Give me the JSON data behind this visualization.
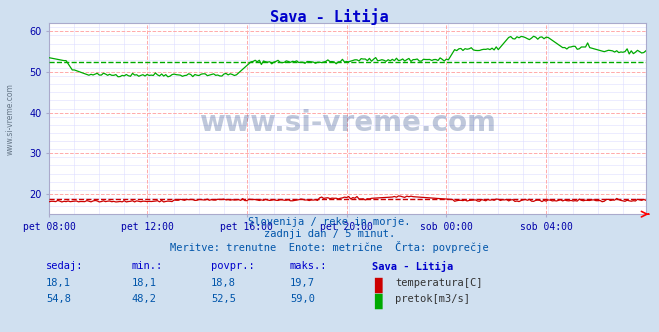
{
  "title": "Sava - Litija",
  "title_color": "#0000cc",
  "bg_color": "#d0e0f0",
  "plot_bg_color": "#ffffff",
  "grid_color_major": "#ffaaaa",
  "grid_color_minor": "#ddddff",
  "tick_color": "#0000aa",
  "text_color": "#0055aa",
  "watermark": "www.si-vreme.com",
  "subtitle1": "Slovenija / reke in morje.",
  "subtitle2": "zadnji dan / 5 minut.",
  "subtitle3": "Meritve: trenutne  Enote: metrične  Črta: povprečje",
  "x_labels": [
    "pet 08:00",
    "pet 12:00",
    "pet 16:00",
    "pet 20:00",
    "sob 00:00",
    "sob 04:00"
  ],
  "x_ticks_norm": [
    0.0,
    0.1667,
    0.3333,
    0.5,
    0.6667,
    0.8333
  ],
  "total_points": 288,
  "ylim": [
    15,
    62
  ],
  "yticks": [
    20,
    30,
    40,
    50,
    60
  ],
  "temp_color": "#cc0000",
  "flow_color": "#00aa00",
  "temp_avg": 18.8,
  "flow_avg": 52.5,
  "table_headers": [
    "sedaj:",
    "min.:",
    "povpr.:",
    "maks.:",
    "Sava - Litija"
  ],
  "table_row1": [
    "18,1",
    "18,1",
    "18,8",
    "19,7"
  ],
  "table_row2": [
    "54,8",
    "48,2",
    "52,5",
    "59,0"
  ],
  "table_label1": "temperatura[C]",
  "table_label2": "pretok[m3/s]"
}
